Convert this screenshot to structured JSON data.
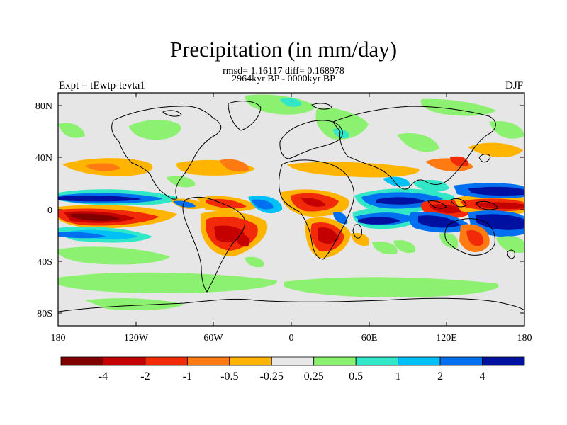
{
  "title": "Precipitation (in mm/day)",
  "stats": "rmsd= 1.16117 diff= 0.168978",
  "period": "2964kyr BP - 0000kyr BP",
  "left_label": "Expt = tEwtp-tevta1",
  "right_label": "DJF",
  "lat_ticks": [
    "80N",
    "40N",
    "0",
    "40S",
    "80S"
  ],
  "lon_ticks": [
    "180",
    "120W",
    "60W",
    "0",
    "60E",
    "120E",
    "180"
  ],
  "colorbar": {
    "colors": [
      "#800000",
      "#c40000",
      "#f22a0a",
      "#ff7a10",
      "#ffb400",
      "#e8e8e8",
      "#8cf070",
      "#30e8c8",
      "#00c0f8",
      "#0070f0",
      "#0010a0"
    ],
    "labels": [
      "-4",
      "-2",
      "-1",
      "-0.5",
      "-0.25",
      "0.25",
      "0.5",
      "1",
      "2",
      "4"
    ]
  },
  "colors": {
    "ocean_neutral": "#e6e6e6",
    "coast": "#000000"
  }
}
